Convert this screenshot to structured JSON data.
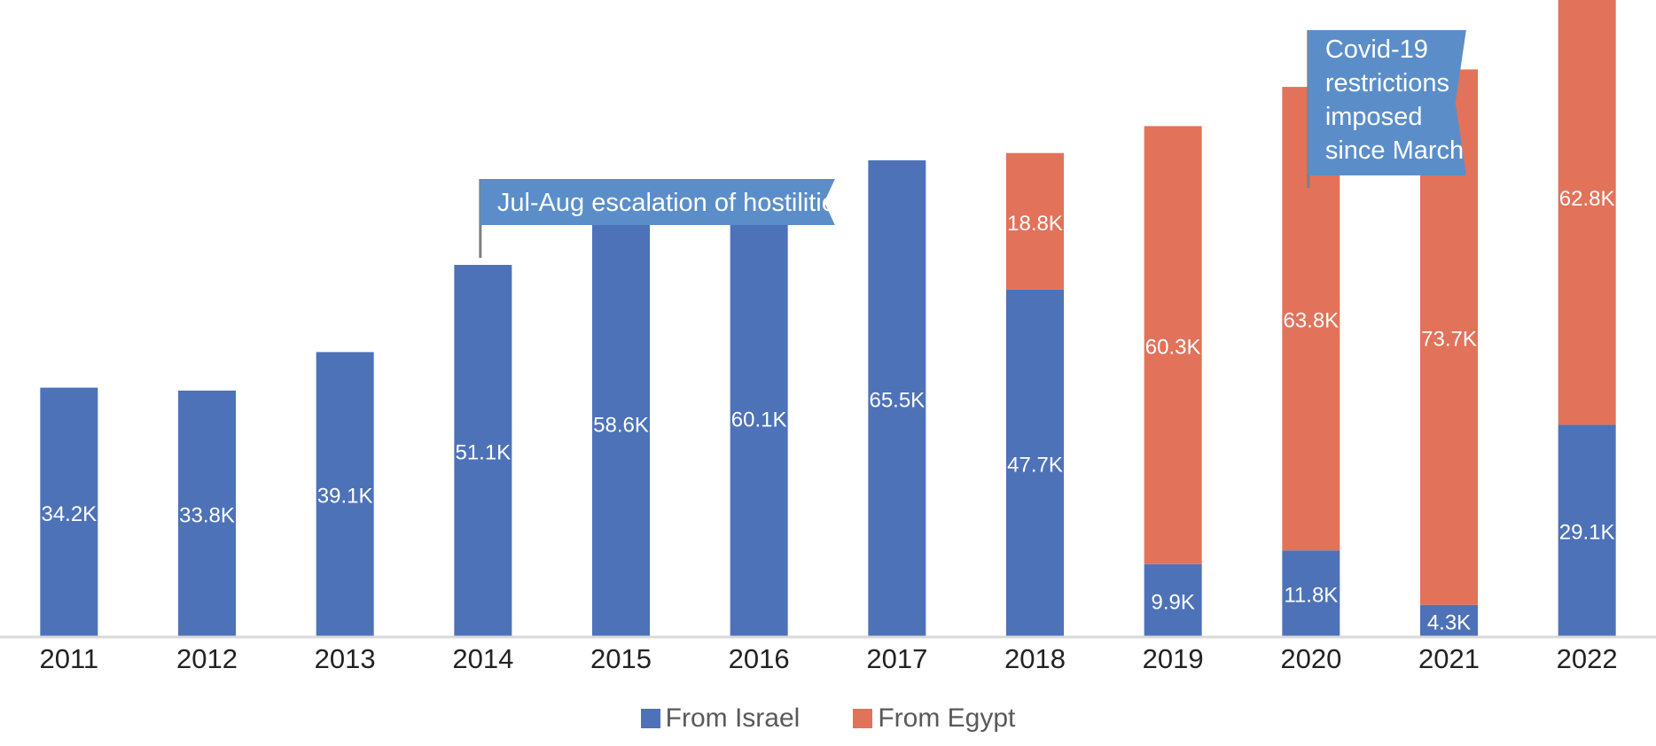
{
  "colors": {
    "israel": "#4d72b8",
    "egypt": "#e2725a",
    "callout": "#5b8ec9",
    "axis": "#d9d9d9",
    "leader": "#7f7f7f",
    "label_text": "#ffffff",
    "tick_text": "#222222"
  },
  "chart_data": {
    "type": "bar",
    "stacked": true,
    "title": "",
    "xlabel": "",
    "ylabel": "",
    "ylim": [
      0,
      95000
    ],
    "categories": [
      "2011",
      "2012",
      "2013",
      "2014",
      "2015",
      "2016",
      "2017",
      "2018",
      "2019",
      "2020",
      "2021",
      "2022"
    ],
    "series": [
      {
        "name": "From Israel",
        "values": [
          34200,
          33800,
          39100,
          51100,
          58600,
          60100,
          65500,
          47700,
          9900,
          11800,
          4300,
          29100
        ],
        "labels": [
          "34.2K",
          "33.8K",
          "39.1K",
          "51.1K",
          "58.6K",
          "60.1K",
          "65.5K",
          "47.7K",
          "9.9K",
          "11.8K",
          "4.3K",
          "29.1K"
        ]
      },
      {
        "name": "From Egypt",
        "values": [
          0,
          0,
          0,
          0,
          0,
          0,
          0,
          18800,
          60300,
          63800,
          73700,
          62800
        ],
        "labels": [
          "",
          "",
          "",
          "",
          "",
          "",
          "",
          "18.8K",
          "60.3K",
          "63.8K",
          "73.7K",
          "62.8K"
        ]
      }
    ],
    "annotations": [
      {
        "category": "2014",
        "text_lines": [
          "Jul-Aug escalation of hostilities"
        ]
      },
      {
        "category": "2020",
        "text_lines": [
          "Covid-19",
          "restrictions",
          "imposed",
          "since March"
        ]
      }
    ],
    "legend": {
      "position": "bottom-center",
      "entries": [
        "From Israel",
        "From Egypt"
      ]
    },
    "grid": false
  }
}
